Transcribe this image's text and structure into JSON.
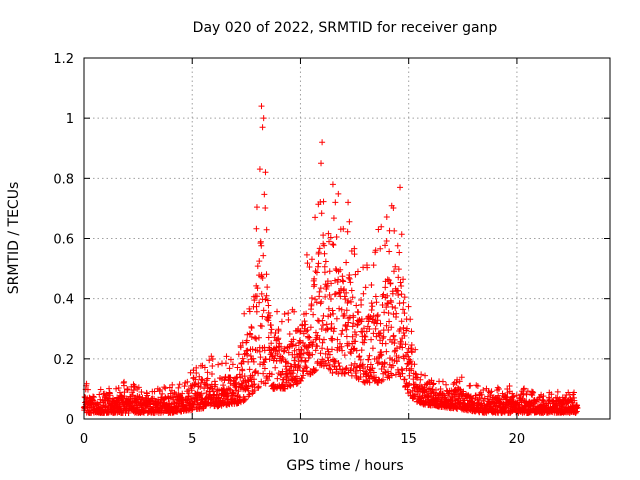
{
  "chart_data": {
    "type": "scatter",
    "title": "Day 020 of 2022, SRMTID for receiver ganp",
    "xlabel": "GPS time / hours",
    "ylabel": "SRMTID / TECUs",
    "xlim": [
      0,
      24.3
    ],
    "ylim": [
      0,
      1.2
    ],
    "x_ticks": [
      0,
      5,
      10,
      15,
      20
    ],
    "y_ticks": [
      0,
      0.2,
      0.4,
      0.6,
      0.8,
      1,
      1.2
    ],
    "x_tick_labels": [
      "0",
      "5",
      "10",
      "15",
      "20"
    ],
    "y_tick_labels": [
      "0",
      "0.2",
      "0.4",
      "0.6",
      "0.8",
      "1",
      "1.2"
    ],
    "grid": true,
    "marker": "+",
    "marker_color": "#ff0000",
    "envelope_note": "Dense cloud of points sampled from approximate min/max envelope read off the plot",
    "envelope": [
      {
        "x": 0.0,
        "lo": 0.02,
        "hi": 0.12
      },
      {
        "x": 1.0,
        "lo": 0.02,
        "hi": 0.1
      },
      {
        "x": 2.0,
        "lo": 0.02,
        "hi": 0.13
      },
      {
        "x": 3.0,
        "lo": 0.02,
        "hi": 0.1
      },
      {
        "x": 4.0,
        "lo": 0.02,
        "hi": 0.11
      },
      {
        "x": 5.0,
        "lo": 0.03,
        "hi": 0.17
      },
      {
        "x": 6.0,
        "lo": 0.04,
        "hi": 0.22
      },
      {
        "x": 7.0,
        "lo": 0.05,
        "hi": 0.2
      },
      {
        "x": 7.5,
        "lo": 0.06,
        "hi": 0.35
      },
      {
        "x": 8.0,
        "lo": 0.1,
        "hi": 0.8
      },
      {
        "x": 8.3,
        "lo": 0.12,
        "hi": 1.05
      },
      {
        "x": 8.7,
        "lo": 0.1,
        "hi": 0.4
      },
      {
        "x": 9.5,
        "lo": 0.1,
        "hi": 0.35
      },
      {
        "x": 10.5,
        "lo": 0.15,
        "hi": 0.6
      },
      {
        "x": 11.0,
        "lo": 0.18,
        "hi": 0.92
      },
      {
        "x": 11.5,
        "lo": 0.15,
        "hi": 0.78
      },
      {
        "x": 12.2,
        "lo": 0.15,
        "hi": 0.72
      },
      {
        "x": 13.0,
        "lo": 0.12,
        "hi": 0.5
      },
      {
        "x": 13.6,
        "lo": 0.12,
        "hi": 0.63
      },
      {
        "x": 14.5,
        "lo": 0.15,
        "hi": 0.77
      },
      {
        "x": 15.0,
        "lo": 0.08,
        "hi": 0.4
      },
      {
        "x": 15.5,
        "lo": 0.05,
        "hi": 0.15
      },
      {
        "x": 16.5,
        "lo": 0.04,
        "hi": 0.13
      },
      {
        "x": 17.5,
        "lo": 0.03,
        "hi": 0.15
      },
      {
        "x": 18.5,
        "lo": 0.02,
        "hi": 0.1
      },
      {
        "x": 19.5,
        "lo": 0.02,
        "hi": 0.12
      },
      {
        "x": 20.5,
        "lo": 0.02,
        "hi": 0.1
      },
      {
        "x": 21.5,
        "lo": 0.02,
        "hi": 0.09
      },
      {
        "x": 22.8,
        "lo": 0.02,
        "hi": 0.1
      }
    ],
    "peaks": [
      {
        "x": 8.2,
        "y": 1.04
      },
      {
        "x": 8.3,
        "y": 1.0
      },
      {
        "x": 8.25,
        "y": 0.97
      },
      {
        "x": 11.0,
        "y": 0.92
      },
      {
        "x": 10.95,
        "y": 0.85
      },
      {
        "x": 11.5,
        "y": 0.78
      },
      {
        "x": 12.2,
        "y": 0.72
      },
      {
        "x": 14.6,
        "y": 0.77
      },
      {
        "x": 13.6,
        "y": 0.63
      },
      {
        "x": 7.4,
        "y": 0.35
      }
    ]
  }
}
